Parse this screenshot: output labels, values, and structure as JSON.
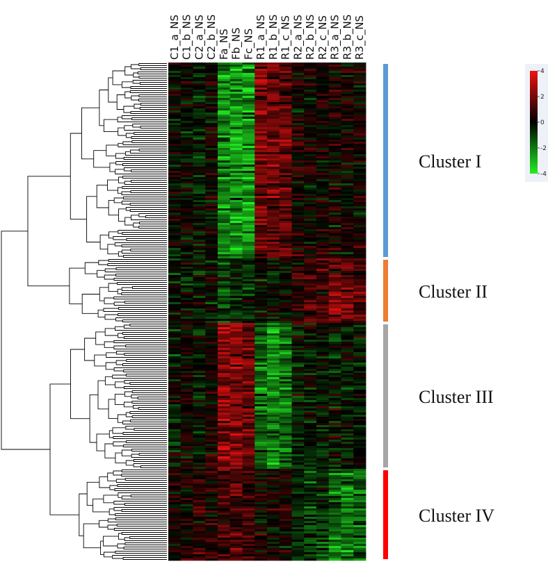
{
  "chart_data": {
    "type": "heatmap",
    "title": "",
    "xlabel": "",
    "ylabel": "",
    "columns": [
      "C1_a_NS",
      "C1_b_NS",
      "C2_a_NS",
      "C2_b_NS",
      "Fa_NS",
      "Fb_NS",
      "Fc_NS",
      "R1_a_NS",
      "R1_b_NS",
      "R1_c_NS",
      "R2_a_NS",
      "R2_b_NS",
      "R2_c_NS",
      "R3_a_NS",
      "R3_b_NS",
      "R3_c_NS"
    ],
    "dendrogram": "rows",
    "color_scale": {
      "min": -4,
      "max": 4,
      "ticks": [
        4,
        2,
        0,
        -2,
        -4
      ],
      "colors": {
        "low": "#22ee22",
        "mid": "#000000",
        "high": "#ee1111"
      },
      "legend_position": "top-right"
    },
    "clusters": [
      {
        "label": "Cluster I",
        "color": "#5b9bd5",
        "row_fraction": 0.395,
        "pattern": [
          0,
          0,
          -0.5,
          0,
          -2.2,
          -2.6,
          -2.6,
          2.0,
          1.8,
          1.6,
          0.3,
          0.2,
          0.3,
          0.3,
          0.2,
          0.3
        ]
      },
      {
        "label": "Cluster II",
        "color": "#ed7d31",
        "row_fraction": 0.13,
        "pattern": [
          -0.2,
          -0.2,
          -0.3,
          -0.2,
          -0.8,
          -0.6,
          -0.6,
          -0.3,
          -0.3,
          0,
          0.6,
          1.2,
          1.2,
          2.0,
          1.8,
          1.5
        ]
      },
      {
        "label": "Cluster III",
        "color": "#a5a5a5",
        "row_fraction": 0.29,
        "pattern": [
          -0.2,
          0.2,
          -0.3,
          0.3,
          2.6,
          2.2,
          1.8,
          -1.8,
          -2.2,
          -1.8,
          -0.4,
          -0.3,
          -0.4,
          -0.3,
          -0.3,
          -0.2
        ]
      },
      {
        "label": "Cluster IV",
        "color": "#ff0000",
        "row_fraction": 0.185,
        "pattern": [
          0.5,
          0.4,
          0.6,
          0.6,
          1.0,
          1.2,
          1.0,
          0.2,
          0.3,
          0.2,
          -0.6,
          -1.0,
          -0.9,
          -1.8,
          -2.0,
          -1.5
        ]
      }
    ]
  }
}
